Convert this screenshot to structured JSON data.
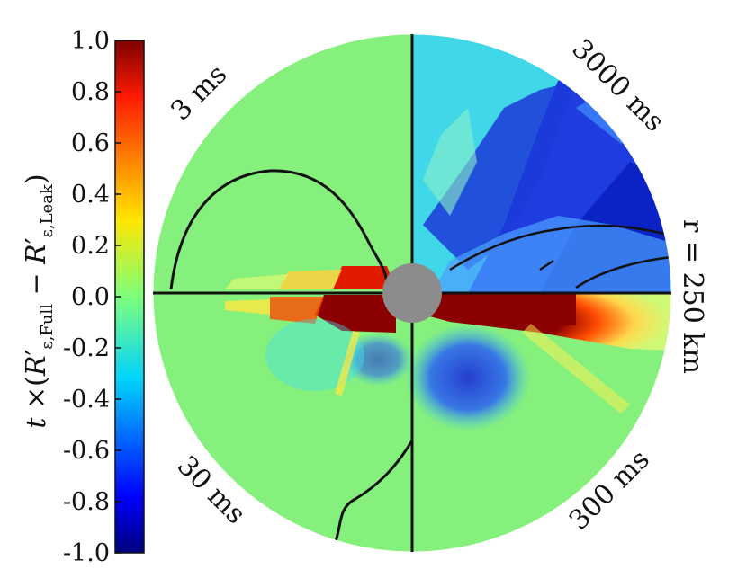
{
  "chart_data": {
    "type": "heatmap",
    "title": "",
    "colorbar": {
      "label": "t ×(R′ε,Full − R′ε,Leak)",
      "min": -1.0,
      "max": 1.0,
      "ticks": [
        "1.0",
        "0.8",
        "0.6",
        "0.4",
        "0.2",
        "0.0",
        "-0.2",
        "-0.4",
        "-0.6",
        "-0.8",
        "-1.0"
      ],
      "colormap": "jet"
    },
    "quadrants": [
      {
        "label": "3 ms",
        "position": "top-left"
      },
      {
        "label": "3000 ms",
        "position": "top-right"
      },
      {
        "label": "30 ms",
        "position": "bottom-left"
      },
      {
        "label": "300 ms",
        "position": "bottom-right"
      }
    ],
    "radius_label": "r = 250 km",
    "colors": {
      "neutral": "#86f07c",
      "positive_max": "#8b0000",
      "negative_max": "#0a1cd6",
      "core": "#8c8c8c",
      "contour": "#111111"
    }
  }
}
